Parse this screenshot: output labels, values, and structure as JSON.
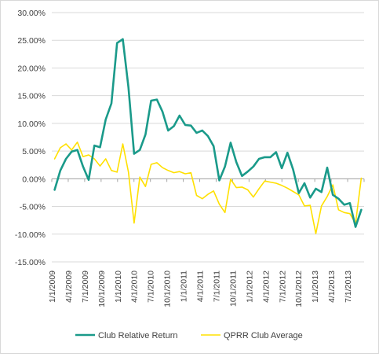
{
  "chart_data": {
    "type": "line",
    "title": "",
    "xlabel": "",
    "ylabel": "",
    "ylim": [
      -0.15,
      0.3
    ],
    "y_ticks": [
      0.3,
      0.25,
      0.2,
      0.15,
      0.1,
      0.05,
      0.0,
      -0.05,
      -0.1,
      -0.15
    ],
    "y_tick_labels": [
      "30.00%",
      "25.00%",
      "20.00%",
      "15.00%",
      "10.00%",
      "5.00%",
      "0.00%",
      "-5.00%",
      "-10.00%",
      "-15.00%"
    ],
    "x_tick_labels": [
      "1/1/2009",
      "4/1/2009",
      "7/1/2009",
      "10/1/2009",
      "1/1/2010",
      "4/1/2010",
      "7/1/2010",
      "10/1/2010",
      "1/1/2011",
      "4/1/2011",
      "7/1/2011",
      "10/1/2011",
      "1/1/2012",
      "4/1/2012",
      "7/1/2012",
      "10/1/2012",
      "1/1/2013",
      "4/1/2013",
      "7/1/2013"
    ],
    "grid": "horizontal",
    "legend": "bottom",
    "series": [
      {
        "name": "Club Relative Return",
        "color": "#1a9a8a",
        "values": [
          -0.02,
          0.015,
          0.036,
          0.049,
          0.052,
          0.022,
          -0.002,
          0.06,
          0.057,
          0.107,
          0.136,
          0.245,
          0.252,
          0.165,
          0.045,
          0.052,
          0.08,
          0.141,
          0.143,
          0.121,
          0.087,
          0.095,
          0.114,
          0.097,
          0.096,
          0.083,
          0.087,
          0.077,
          0.059,
          -0.003,
          0.022,
          0.065,
          0.03,
          0.005,
          0.013,
          0.022,
          0.036,
          0.039,
          0.039,
          0.048,
          0.019,
          0.047,
          0.017,
          -0.026,
          -0.008,
          -0.034,
          -0.018,
          -0.024,
          0.02,
          -0.029,
          -0.036,
          -0.047,
          -0.044,
          -0.087,
          -0.056
        ]
      },
      {
        "name": "QPRR Club Average",
        "color": "#ffe000",
        "values": [
          0.036,
          0.056,
          0.063,
          0.052,
          0.066,
          0.04,
          0.043,
          0.036,
          0.023,
          0.036,
          0.015,
          0.012,
          0.063,
          0.012,
          -0.08,
          0.003,
          -0.014,
          0.026,
          0.029,
          0.02,
          0.015,
          0.011,
          0.013,
          0.009,
          0.011,
          -0.03,
          -0.036,
          -0.028,
          -0.022,
          -0.046,
          -0.061,
          -0.001,
          -0.016,
          -0.015,
          -0.02,
          -0.033,
          -0.018,
          -0.004,
          -0.006,
          -0.008,
          -0.012,
          -0.017,
          -0.023,
          -0.029,
          -0.049,
          -0.048,
          -0.099,
          -0.049,
          -0.032,
          -0.011,
          -0.056,
          -0.061,
          -0.063,
          -0.081,
          0.001
        ]
      }
    ]
  }
}
